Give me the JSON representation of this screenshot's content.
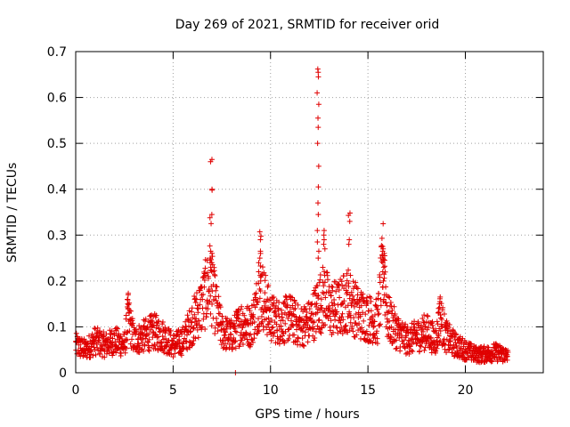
{
  "chart_data": {
    "type": "scatter",
    "title": "Day 269 of 2021, SRMTID for receiver orid",
    "xlabel": "GPS time / hours",
    "ylabel": "SRMTID / TECUs",
    "xlim": [
      0,
      24
    ],
    "ylim": [
      0,
      0.7
    ],
    "xticks": [
      0,
      5,
      10,
      15,
      20
    ],
    "xtick_labels": [
      "0",
      "5",
      "10",
      "15",
      "20"
    ],
    "yticks": [
      0,
      0.1,
      0.2,
      0.3,
      0.4,
      0.5,
      0.6,
      0.7
    ],
    "ytick_labels": [
      "0",
      "0.1",
      "0.2",
      "0.3",
      "0.4",
      "0.5",
      "0.6",
      "0.7"
    ],
    "grid": true,
    "marker": "+",
    "color": "#e00000",
    "series": [
      {
        "name": "SRMTID",
        "profile": {
          "x": [
            0.0,
            0.5,
            1.0,
            1.5,
            2.0,
            2.5,
            2.7,
            3.0,
            3.5,
            4.0,
            4.5,
            5.0,
            5.5,
            6.0,
            6.5,
            6.9,
            7.2,
            7.5,
            8.0,
            8.5,
            9.0,
            9.5,
            10.0,
            10.5,
            11.0,
            11.5,
            12.0,
            12.5,
            12.8,
            13.0,
            13.5,
            14.0,
            14.5,
            15.0,
            15.5,
            15.8,
            16.0,
            16.5,
            17.0,
            17.5,
            18.0,
            18.5,
            18.7,
            19.0,
            19.5,
            20.0,
            20.5,
            21.0,
            21.5,
            22.0,
            22.2
          ],
          "y": [
            0.06,
            0.05,
            0.07,
            0.06,
            0.07,
            0.06,
            0.12,
            0.07,
            0.08,
            0.09,
            0.08,
            0.06,
            0.07,
            0.11,
            0.15,
            0.2,
            0.14,
            0.09,
            0.08,
            0.11,
            0.1,
            0.18,
            0.12,
            0.11,
            0.12,
            0.1,
            0.11,
            0.15,
            0.17,
            0.14,
            0.14,
            0.16,
            0.13,
            0.12,
            0.11,
            0.24,
            0.12,
            0.09,
            0.07,
            0.08,
            0.09,
            0.07,
            0.12,
            0.08,
            0.06,
            0.05,
            0.04,
            0.04,
            0.045,
            0.04,
            0.035
          ]
        },
        "spikes": [
          {
            "x": 2.7,
            "values": [
              0.17,
              0.16,
              0.15,
              0.14,
              0.13
            ]
          },
          {
            "x": 6.95,
            "values": [
              0.465,
              0.46,
              0.4,
              0.398,
              0.345,
              0.338,
              0.325,
              0.265,
              0.26,
              0.25,
              0.24,
              0.23
            ]
          },
          {
            "x": 9.45,
            "values": [
              0.307,
              0.298,
              0.29,
              0.265,
              0.26,
              0.25,
              0.24,
              0.22,
              0.2
            ]
          },
          {
            "x": 12.45,
            "values": [
              0.662,
              0.655,
              0.645,
              0.61,
              0.585,
              0.555,
              0.535,
              0.5,
              0.45,
              0.405,
              0.37,
              0.345,
              0.31,
              0.285,
              0.265,
              0.25
            ]
          },
          {
            "x": 12.75,
            "values": [
              0.31,
              0.3,
              0.29,
              0.28,
              0.27
            ]
          },
          {
            "x": 14.05,
            "values": [
              0.348,
              0.343,
              0.33,
              0.29,
              0.28
            ]
          },
          {
            "x": 15.8,
            "values": [
              0.275,
              0.27,
              0.265,
              0.26,
              0.255,
              0.25,
              0.245,
              0.24,
              0.23,
              0.22,
              0.2
            ]
          },
          {
            "x": 18.65,
            "values": [
              0.165,
              0.155,
              0.15,
              0.14,
              0.13
            ]
          }
        ],
        "outliers": [
          {
            "x": 8.2,
            "y": 0.0
          }
        ]
      }
    ]
  }
}
